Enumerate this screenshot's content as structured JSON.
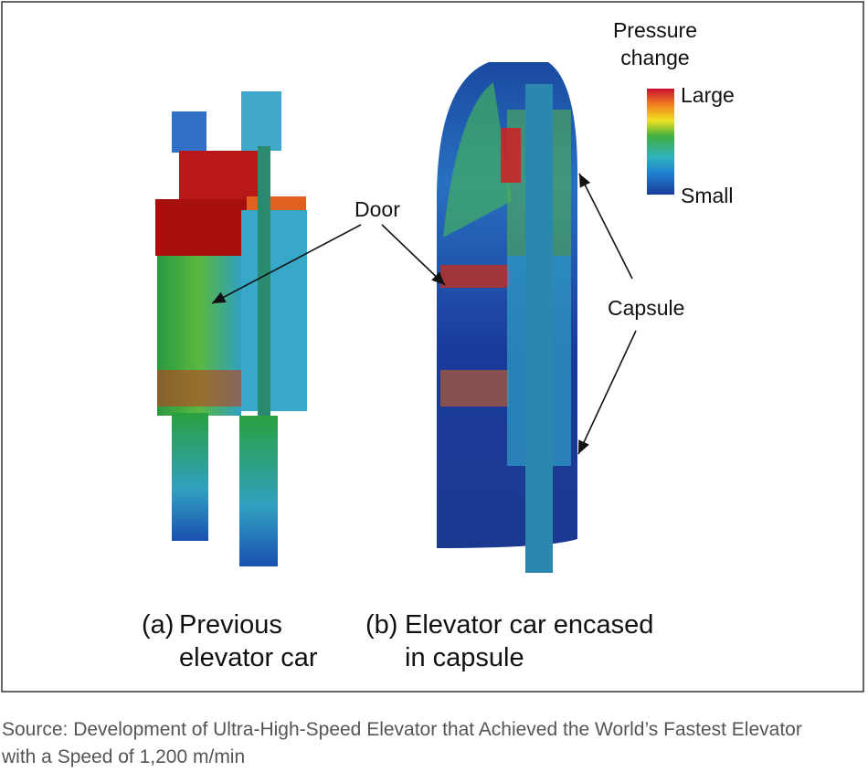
{
  "legend": {
    "title": "Pressure change",
    "high": "Large",
    "low": "Small"
  },
  "annotations": {
    "door": "Door",
    "capsule": "Capsule"
  },
  "panels": [
    {
      "marker": "(a)",
      "caption": "Previous elevator car"
    },
    {
      "marker": "(b)",
      "caption": "Elevator car encased in capsule"
    }
  ],
  "source": "Source: Development of Ultra-High-Speed Elevator that Achieved the World’s Fastest Elevator with a Speed of 1,200 m/min"
}
